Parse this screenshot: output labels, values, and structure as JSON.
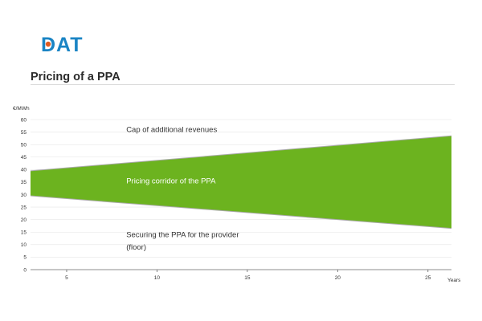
{
  "logo_text": "DAT",
  "colors": {
    "brand": "#1a84c4",
    "brand_accent": "#e05a1f",
    "corridor": "#6cb31f",
    "axis": "#666666",
    "grid": "#e6e6e6",
    "label": "#333333",
    "corridor_text": "#ffffff"
  },
  "page_title": "Pricing of a PPA",
  "chart_data": {
    "type": "area",
    "ylabel": "€/MWh",
    "xlabel": "Years",
    "xlim": [
      3,
      26.3
    ],
    "ylim": [
      0,
      60
    ],
    "x_ticks": [
      5,
      10,
      15,
      20,
      25
    ],
    "y_ticks": [
      0,
      5,
      10,
      15,
      20,
      25,
      30,
      35,
      40,
      45,
      50,
      55,
      60
    ],
    "grid": true,
    "series": [
      {
        "role": "upper",
        "x": [
          3,
          26.3
        ],
        "values": [
          39.5,
          53.5
        ]
      },
      {
        "role": "lower",
        "x": [
          3,
          26.3
        ],
        "values": [
          29.5,
          16.5
        ]
      }
    ],
    "annotations": [
      {
        "text": "Cap of additional revenues",
        "x": 8.3,
        "y": 55,
        "style": "label"
      },
      {
        "text": "Pricing corridor of the PPA",
        "x": 8.3,
        "y": 34.5,
        "style": "corridor"
      },
      {
        "text": "Securing the PPA for the provider",
        "x": 8.3,
        "y": 13,
        "style": "label"
      },
      {
        "text": "(floor)",
        "x": 8.3,
        "y": 8,
        "style": "label"
      }
    ]
  }
}
